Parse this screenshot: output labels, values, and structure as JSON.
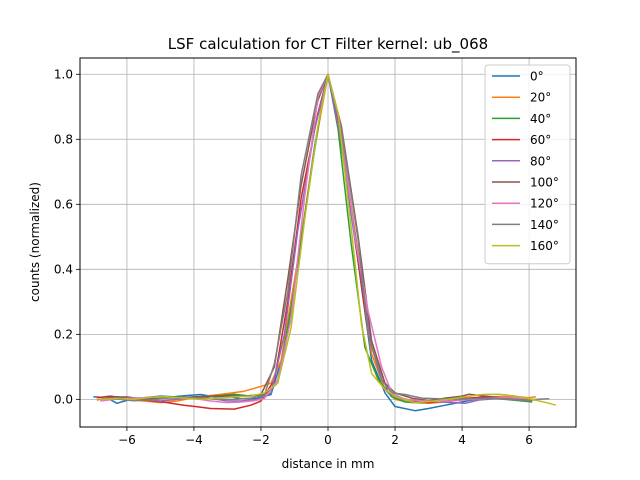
{
  "chart_data": {
    "type": "line",
    "title": "LSF calculation for CT Filter kernel: ub_068",
    "xlabel": "distance in mm",
    "ylabel": "counts (normalized)",
    "xlim": [
      -7.4,
      7.4
    ],
    "ylim": [
      -0.085,
      1.05
    ],
    "xticks": [
      -6,
      -4,
      -2,
      0,
      2,
      4,
      6
    ],
    "yticks": [
      0.0,
      0.2,
      0.4,
      0.6,
      0.8,
      1.0
    ],
    "xtick_labels": [
      "−6",
      "−4",
      "−2",
      "0",
      "2",
      "4",
      "6"
    ],
    "ytick_labels": [
      "0.0",
      "0.2",
      "0.4",
      "0.6",
      "0.8",
      "1.0"
    ],
    "grid": true,
    "legend_position": "upper right",
    "series": [
      {
        "name": "0°",
        "color": "#1f77b4",
        "points": [
          [
            -7.0,
            0.008
          ],
          [
            -6.6,
            0.005
          ],
          [
            -6.3,
            -0.012
          ],
          [
            -5.9,
            0.0
          ],
          [
            -5.5,
            0.005
          ],
          [
            -5.0,
            0.01
          ],
          [
            -4.6,
            0.008
          ],
          [
            -4.2,
            0.012
          ],
          [
            -3.8,
            0.015
          ],
          [
            -3.4,
            0.008
          ],
          [
            -3.0,
            0.01
          ],
          [
            -2.6,
            0.002
          ],
          [
            -2.1,
            0.003
          ],
          [
            -1.7,
            0.015
          ],
          [
            -1.3,
            0.15
          ],
          [
            -0.9,
            0.42
          ],
          [
            -0.4,
            0.78
          ],
          [
            0.0,
            1.0
          ],
          [
            0.4,
            0.78
          ],
          [
            0.9,
            0.42
          ],
          [
            1.3,
            0.12
          ],
          [
            1.7,
            0.02
          ],
          [
            2.0,
            -0.022
          ],
          [
            2.6,
            -0.035
          ],
          [
            3.0,
            -0.028
          ],
          [
            3.5,
            -0.018
          ],
          [
            4.0,
            -0.008
          ],
          [
            4.5,
            0.002
          ],
          [
            5.0,
            0.004
          ],
          [
            5.5,
            0.002
          ],
          [
            6.0,
            -0.002
          ]
        ]
      },
      {
        "name": "20°",
        "color": "#ff7f0e",
        "points": [
          [
            -6.9,
            -0.003
          ],
          [
            -6.5,
            0.01
          ],
          [
            -6.0,
            0.0
          ],
          [
            -5.5,
            -0.005
          ],
          [
            -5.0,
            -0.01
          ],
          [
            -4.5,
            -0.005
          ],
          [
            -4.0,
            0.005
          ],
          [
            -3.5,
            0.012
          ],
          [
            -3.0,
            0.018
          ],
          [
            -2.5,
            0.025
          ],
          [
            -2.0,
            0.04
          ],
          [
            -1.7,
            0.05
          ],
          [
            -1.4,
            0.12
          ],
          [
            -0.9,
            0.43
          ],
          [
            -0.4,
            0.77
          ],
          [
            0.0,
            1.0
          ],
          [
            0.4,
            0.8
          ],
          [
            0.9,
            0.45
          ],
          [
            1.3,
            0.14
          ],
          [
            1.7,
            0.03
          ],
          [
            2.0,
            0.0
          ],
          [
            2.5,
            -0.01
          ],
          [
            3.0,
            -0.012
          ],
          [
            3.5,
            -0.008
          ],
          [
            4.0,
            0.0
          ],
          [
            4.5,
            0.005
          ],
          [
            5.0,
            0.008
          ],
          [
            5.5,
            0.01
          ],
          [
            6.0,
            0.005
          ],
          [
            6.2,
            0.008
          ]
        ]
      },
      {
        "name": "40°",
        "color": "#2ca02c",
        "points": [
          [
            -6.8,
            0.0
          ],
          [
            -6.4,
            0.004
          ],
          [
            -6.0,
            0.002
          ],
          [
            -5.5,
            0.0
          ],
          [
            -5.0,
            0.004
          ],
          [
            -4.6,
            0.008
          ],
          [
            -4.2,
            0.004
          ],
          [
            -3.8,
            0.006
          ],
          [
            -3.2,
            0.012
          ],
          [
            -2.8,
            0.016
          ],
          [
            -2.3,
            0.01
          ],
          [
            -1.9,
            0.015
          ],
          [
            -1.5,
            0.05
          ],
          [
            -1.1,
            0.28
          ],
          [
            -0.6,
            0.63
          ],
          [
            -0.2,
            0.9
          ],
          [
            0.0,
            1.0
          ],
          [
            0.3,
            0.83
          ],
          [
            0.7,
            0.47
          ],
          [
            1.1,
            0.16
          ],
          [
            1.5,
            0.06
          ],
          [
            1.9,
            0.008
          ],
          [
            2.3,
            -0.008
          ],
          [
            2.8,
            -0.01
          ],
          [
            3.3,
            -0.005
          ],
          [
            3.8,
            0.002
          ],
          [
            4.3,
            0.004
          ],
          [
            4.8,
            0.004
          ],
          [
            5.3,
            0.0
          ],
          [
            5.8,
            -0.005
          ],
          [
            6.1,
            -0.008
          ]
        ]
      },
      {
        "name": "60°",
        "color": "#d62728",
        "points": [
          [
            -6.9,
            0.005
          ],
          [
            -6.5,
            0.01
          ],
          [
            -6.1,
            0.005
          ],
          [
            -5.7,
            0.0
          ],
          [
            -5.2,
            -0.005
          ],
          [
            -4.8,
            -0.01
          ],
          [
            -4.3,
            -0.018
          ],
          [
            -3.9,
            -0.023
          ],
          [
            -3.5,
            -0.028
          ],
          [
            -2.8,
            -0.03
          ],
          [
            -2.3,
            -0.018
          ],
          [
            -2.0,
            -0.005
          ],
          [
            -1.6,
            0.06
          ],
          [
            -1.2,
            0.3
          ],
          [
            -0.8,
            0.62
          ],
          [
            -0.3,
            0.88
          ],
          [
            0.0,
            1.0
          ],
          [
            0.4,
            0.82
          ],
          [
            0.8,
            0.5
          ],
          [
            1.2,
            0.2
          ],
          [
            1.6,
            0.06
          ],
          [
            2.0,
            0.01
          ],
          [
            2.5,
            -0.005
          ],
          [
            3.0,
            -0.01
          ],
          [
            3.6,
            -0.005
          ],
          [
            4.1,
            0.003
          ],
          [
            4.6,
            0.007
          ],
          [
            5.1,
            0.005
          ],
          [
            5.6,
            0.001
          ],
          [
            6.1,
            -0.003
          ]
        ]
      },
      {
        "name": "80°",
        "color": "#9467bd",
        "points": [
          [
            -6.8,
            0.0
          ],
          [
            -6.4,
            0.005
          ],
          [
            -6.0,
            0.008
          ],
          [
            -5.5,
            0.0
          ],
          [
            -5.0,
            -0.005
          ],
          [
            -4.5,
            0.0
          ],
          [
            -4.0,
            0.006
          ],
          [
            -3.5,
            0.003
          ],
          [
            -3.0,
            -0.005
          ],
          [
            -2.6,
            -0.005
          ],
          [
            -2.1,
            0.0
          ],
          [
            -1.7,
            0.02
          ],
          [
            -1.3,
            0.2
          ],
          [
            -0.9,
            0.52
          ],
          [
            -0.4,
            0.83
          ],
          [
            0.0,
            1.0
          ],
          [
            0.4,
            0.79
          ],
          [
            0.9,
            0.44
          ],
          [
            1.3,
            0.16
          ],
          [
            1.8,
            0.02
          ],
          [
            2.2,
            0.0
          ],
          [
            2.7,
            -0.004
          ],
          [
            3.2,
            -0.007
          ],
          [
            3.7,
            -0.01
          ],
          [
            4.1,
            -0.012
          ],
          [
            4.5,
            -0.002
          ],
          [
            5.0,
            0.002
          ],
          [
            5.5,
            0.0
          ],
          [
            6.0,
            -0.004
          ]
        ]
      },
      {
        "name": "100°",
        "color": "#8c564b",
        "points": [
          [
            -6.7,
            0.005
          ],
          [
            -6.3,
            0.008
          ],
          [
            -5.9,
            0.005
          ],
          [
            -5.4,
            0.002
          ],
          [
            -5.0,
            0.006
          ],
          [
            -4.5,
            0.004
          ],
          [
            -4.0,
            0.008
          ],
          [
            -3.5,
            0.01
          ],
          [
            -3.0,
            0.012
          ],
          [
            -2.5,
            0.01
          ],
          [
            -2.0,
            0.015
          ],
          [
            -1.6,
            0.1
          ],
          [
            -1.2,
            0.37
          ],
          [
            -0.8,
            0.66
          ],
          [
            -0.3,
            0.92
          ],
          [
            0.0,
            1.0
          ],
          [
            0.4,
            0.84
          ],
          [
            0.9,
            0.5
          ],
          [
            1.3,
            0.18
          ],
          [
            1.7,
            0.05
          ],
          [
            2.0,
            0.02
          ],
          [
            2.5,
            0.004
          ],
          [
            3.0,
            -0.004
          ],
          [
            3.5,
            0.004
          ],
          [
            4.0,
            0.01
          ],
          [
            4.2,
            0.016
          ],
          [
            4.7,
            0.01
          ],
          [
            5.2,
            0.005
          ],
          [
            5.7,
            0.0
          ],
          [
            6.1,
            -0.002
          ]
        ]
      },
      {
        "name": "120°",
        "color": "#e377c2",
        "points": [
          [
            -6.8,
            -0.005
          ],
          [
            -6.4,
            0.0
          ],
          [
            -6.0,
            0.003
          ],
          [
            -5.5,
            0.005
          ],
          [
            -5.0,
            0.008
          ],
          [
            -4.5,
            0.005
          ],
          [
            -4.0,
            0.003
          ],
          [
            -3.5,
            -0.005
          ],
          [
            -3.0,
            -0.01
          ],
          [
            -2.6,
            -0.008
          ],
          [
            -2.2,
            -0.004
          ],
          [
            -1.9,
            0.002
          ],
          [
            -1.5,
            0.06
          ],
          [
            -1.1,
            0.25
          ],
          [
            -0.7,
            0.62
          ],
          [
            -0.3,
            0.93
          ],
          [
            0.0,
            1.0
          ],
          [
            0.4,
            0.83
          ],
          [
            0.8,
            0.5
          ],
          [
            1.2,
            0.27
          ],
          [
            1.6,
            0.1
          ],
          [
            1.9,
            0.02
          ],
          [
            2.3,
            0.0
          ],
          [
            2.8,
            -0.004
          ],
          [
            3.3,
            -0.006
          ],
          [
            3.8,
            -0.004
          ],
          [
            4.3,
            0.0
          ],
          [
            4.8,
            0.004
          ],
          [
            5.3,
            0.006
          ],
          [
            5.8,
            0.003
          ],
          [
            6.2,
            -0.003
          ]
        ]
      },
      {
        "name": "140°",
        "color": "#7f7f7f",
        "points": [
          [
            -6.7,
            0.005
          ],
          [
            -6.2,
            0.0
          ],
          [
            -5.8,
            -0.004
          ],
          [
            -5.3,
            -0.002
          ],
          [
            -4.8,
            0.004
          ],
          [
            -4.3,
            0.006
          ],
          [
            -3.8,
            0.004
          ],
          [
            -3.3,
            0.0
          ],
          [
            -2.8,
            0.0
          ],
          [
            -2.3,
            0.004
          ],
          [
            -1.9,
            0.012
          ],
          [
            -1.6,
            0.11
          ],
          [
            -1.2,
            0.33
          ],
          [
            -0.8,
            0.69
          ],
          [
            -0.3,
            0.94
          ],
          [
            0.0,
            1.0
          ],
          [
            0.4,
            0.83
          ],
          [
            0.9,
            0.49
          ],
          [
            1.2,
            0.2
          ],
          [
            1.6,
            0.06
          ],
          [
            1.9,
            0.02
          ],
          [
            2.3,
            0.015
          ],
          [
            2.8,
            0.004
          ],
          [
            3.3,
            0.002
          ],
          [
            3.8,
            0.0
          ],
          [
            4.3,
            0.002
          ],
          [
            4.8,
            0.004
          ],
          [
            5.3,
            0.002
          ],
          [
            5.8,
            -0.002
          ],
          [
            6.2,
            0.0
          ],
          [
            6.6,
            0.002
          ]
        ]
      },
      {
        "name": "160°",
        "color": "#bcbd22",
        "points": [
          [
            -6.8,
            0.0
          ],
          [
            -6.3,
            0.003
          ],
          [
            -5.8,
            0.0
          ],
          [
            -5.3,
            0.006
          ],
          [
            -4.8,
            0.008
          ],
          [
            -4.3,
            0.004
          ],
          [
            -3.8,
            0.0
          ],
          [
            -3.3,
            0.004
          ],
          [
            -2.8,
            0.008
          ],
          [
            -2.3,
            0.01
          ],
          [
            -1.9,
            0.02
          ],
          [
            -1.5,
            0.05
          ],
          [
            -1.1,
            0.22
          ],
          [
            -0.7,
            0.55
          ],
          [
            -0.3,
            0.84
          ],
          [
            0.0,
            1.0
          ],
          [
            0.3,
            0.88
          ],
          [
            0.7,
            0.52
          ],
          [
            1.0,
            0.23
          ],
          [
            1.3,
            0.08
          ],
          [
            1.7,
            0.03
          ],
          [
            2.1,
            0.005
          ],
          [
            2.6,
            -0.01
          ],
          [
            3.1,
            -0.006
          ],
          [
            3.6,
            0.0
          ],
          [
            4.1,
            0.008
          ],
          [
            4.6,
            0.015
          ],
          [
            5.1,
            0.016
          ],
          [
            5.6,
            0.01
          ],
          [
            6.1,
            0.0
          ],
          [
            6.6,
            -0.012
          ],
          [
            6.8,
            -0.018
          ]
        ]
      }
    ]
  }
}
